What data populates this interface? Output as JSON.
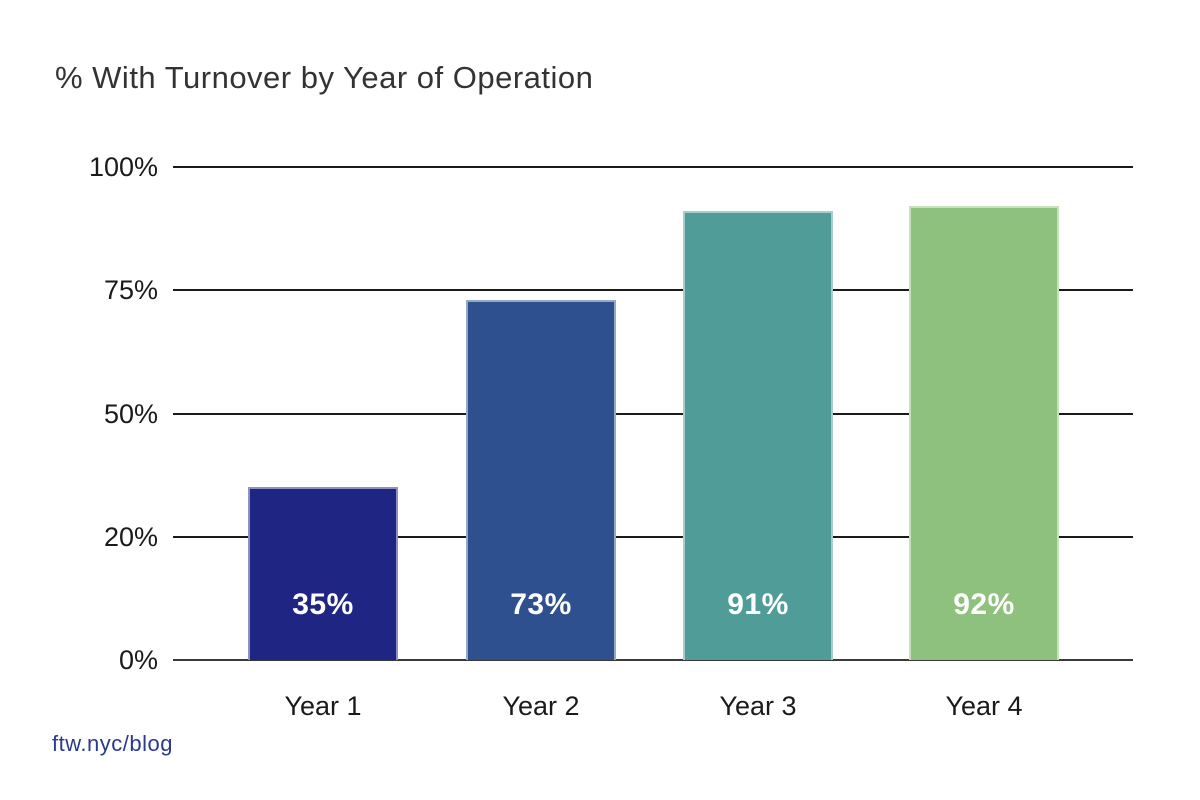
{
  "chart_data": {
    "type": "bar",
    "title": "% With Turnover by Year of Operation",
    "categories": [
      "Year 1",
      "Year 2",
      "Year 3",
      "Year 4"
    ],
    "values": [
      35,
      73,
      91,
      92
    ],
    "value_labels": [
      "35%",
      "73%",
      "91%",
      "92%"
    ],
    "bar_colors": [
      "#1f2583",
      "#2e508f",
      "#4f9c98",
      "#8ec17d"
    ],
    "value_label_color": "#ffffff",
    "y_ticks": [
      "100%",
      "75%",
      "50%",
      "20%",
      "0%"
    ],
    "ylim": [
      0,
      100
    ],
    "grid": true,
    "legend": "none",
    "xlabel": "",
    "ylabel": ""
  },
  "footer": {
    "link": "ftw.nyc/blog"
  }
}
